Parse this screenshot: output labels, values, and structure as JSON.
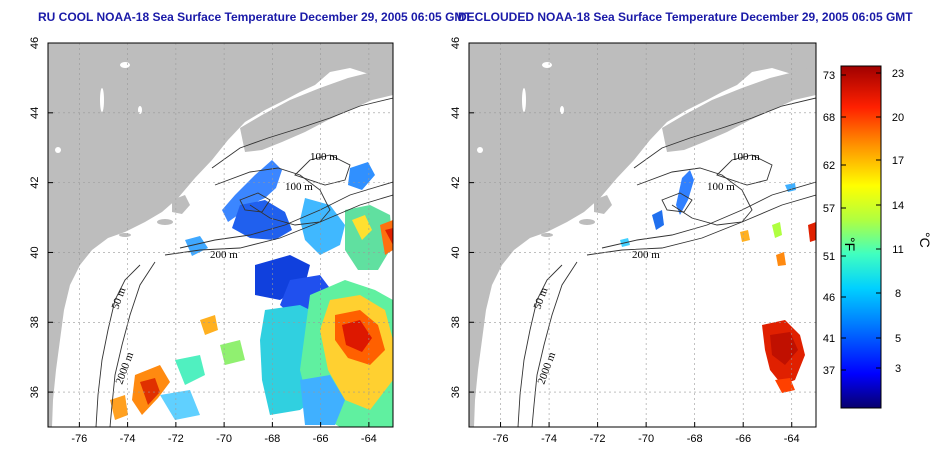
{
  "titles": {
    "left": "RU COOL NOAA-18 Sea Surface Temperature December 29, 2005 06:05 GMT",
    "right": "DECLOUDED NOAA-18 Sea Surface Temperature December 29, 2005 06:05 GMT"
  },
  "map": {
    "x_ticks": [
      "-76",
      "-74",
      "-72",
      "-70",
      "-68",
      "-66",
      "-64"
    ],
    "y_ticks": [
      "36",
      "38",
      "40",
      "42",
      "44",
      "46"
    ],
    "contour_labels": [
      "100 m",
      "100 m",
      "200 m",
      "50 m",
      "2000 m"
    ],
    "land_color": "#bdbdbd",
    "contour_color": "#333333",
    "grid_style": "dotted"
  },
  "colorbar": {
    "fahrenheit_ticks": [
      "73",
      "68",
      "62",
      "57",
      "51",
      "46",
      "41",
      "37"
    ],
    "celsius_ticks": [
      "23",
      "20",
      "17",
      "14",
      "11",
      "8",
      "5",
      "3"
    ],
    "fahrenheit_unit": "°F",
    "celsius_unit": "°C",
    "colors": [
      "#08006e",
      "#0000ff",
      "#0080ff",
      "#00d0ff",
      "#40ffc0",
      "#b0ff40",
      "#ffff00",
      "#ff9000",
      "#ff2000",
      "#a00000"
    ]
  }
}
